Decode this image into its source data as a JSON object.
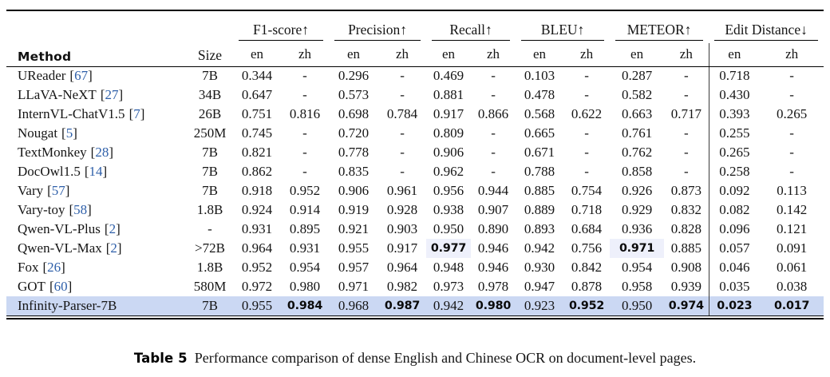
{
  "table": {
    "cite_open": "[",
    "cite_close": "]",
    "header": {
      "method": "Method",
      "size": "Size",
      "sub": [
        "en",
        "zh"
      ],
      "groups": [
        {
          "id": "f1-score",
          "label": "F1-score",
          "arrow": "↑"
        },
        {
          "id": "precision",
          "label": "Precision",
          "arrow": "↑"
        },
        {
          "id": "recall",
          "label": "Recall",
          "arrow": "↑"
        },
        {
          "id": "bleu",
          "label": "BLEU",
          "arrow": "↑"
        },
        {
          "id": "meteor",
          "label": "METEOR",
          "arrow": "↑"
        },
        {
          "id": "edit-distance",
          "label": "Edit Distance",
          "arrow": "↓"
        }
      ]
    },
    "rows": [
      {
        "method": "UReader",
        "cite": "67",
        "size": "7B",
        "values": [
          "0.344",
          "-",
          "0.296",
          "-",
          "0.469",
          "-",
          "0.103",
          "-",
          "0.287",
          "-",
          "0.718",
          "-"
        ],
        "bold": [],
        "hl_cells": [],
        "highlight_row": false
      },
      {
        "method": "LLaVA-NeXT",
        "cite": "27",
        "size": "34B",
        "values": [
          "0.647",
          "-",
          "0.573",
          "-",
          "0.881",
          "-",
          "0.478",
          "-",
          "0.582",
          "-",
          "0.430",
          "-"
        ],
        "bold": [],
        "hl_cells": [],
        "highlight_row": false
      },
      {
        "method": "InternVL-ChatV1.5",
        "cite": "7",
        "size": "26B",
        "values": [
          "0.751",
          "0.816",
          "0.698",
          "0.784",
          "0.917",
          "0.866",
          "0.568",
          "0.622",
          "0.663",
          "0.717",
          "0.393",
          "0.265"
        ],
        "bold": [],
        "hl_cells": [],
        "highlight_row": false
      },
      {
        "method": "Nougat",
        "cite": "5",
        "size": "250M",
        "values": [
          "0.745",
          "-",
          "0.720",
          "-",
          "0.809",
          "-",
          "0.665",
          "-",
          "0.761",
          "-",
          "0.255",
          "-"
        ],
        "bold": [],
        "hl_cells": [],
        "highlight_row": false
      },
      {
        "method": "TextMonkey",
        "cite": "28",
        "size": "7B",
        "values": [
          "0.821",
          "-",
          "0.778",
          "-",
          "0.906",
          "-",
          "0.671",
          "-",
          "0.762",
          "-",
          "0.265",
          "-"
        ],
        "bold": [],
        "hl_cells": [],
        "highlight_row": false
      },
      {
        "method": "DocOwl1.5",
        "cite": "14",
        "size": "7B",
        "values": [
          "0.862",
          "-",
          "0.835",
          "-",
          "0.962",
          "-",
          "0.788",
          "-",
          "0.858",
          "-",
          "0.258",
          "-"
        ],
        "bold": [],
        "hl_cells": [],
        "highlight_row": false
      },
      {
        "method": "Vary",
        "cite": "57",
        "size": "7B",
        "values": [
          "0.918",
          "0.952",
          "0.906",
          "0.961",
          "0.956",
          "0.944",
          "0.885",
          "0.754",
          "0.926",
          "0.873",
          "0.092",
          "0.113"
        ],
        "bold": [],
        "hl_cells": [],
        "highlight_row": false
      },
      {
        "method": "Vary-toy",
        "cite": "58",
        "size": "1.8B",
        "values": [
          "0.924",
          "0.914",
          "0.919",
          "0.928",
          "0.938",
          "0.907",
          "0.889",
          "0.718",
          "0.929",
          "0.832",
          "0.082",
          "0.142"
        ],
        "bold": [],
        "hl_cells": [],
        "highlight_row": false
      },
      {
        "method": "Qwen-VL-Plus",
        "cite": "2",
        "size": "-",
        "values": [
          "0.931",
          "0.895",
          "0.921",
          "0.903",
          "0.950",
          "0.890",
          "0.893",
          "0.684",
          "0.936",
          "0.828",
          "0.096",
          "0.121"
        ],
        "bold": [],
        "hl_cells": [],
        "highlight_row": false
      },
      {
        "method": "Qwen-VL-Max",
        "cite": "2",
        "size": ">72B",
        "values": [
          "0.964",
          "0.931",
          "0.955",
          "0.917",
          "0.977",
          "0.946",
          "0.942",
          "0.756",
          "0.971",
          "0.885",
          "0.057",
          "0.091"
        ],
        "bold": [
          4,
          8
        ],
        "hl_cells": [
          4,
          8
        ],
        "highlight_row": false
      },
      {
        "method": "Fox",
        "cite": "26",
        "size": "1.8B",
        "values": [
          "0.952",
          "0.954",
          "0.957",
          "0.964",
          "0.948",
          "0.946",
          "0.930",
          "0.842",
          "0.954",
          "0.908",
          "0.046",
          "0.061"
        ],
        "bold": [],
        "hl_cells": [],
        "highlight_row": false
      },
      {
        "method": "GOT",
        "cite": "60",
        "size": "580M",
        "values": [
          "0.972",
          "0.980",
          "0.971",
          "0.982",
          "0.973",
          "0.978",
          "0.947",
          "0.878",
          "0.958",
          "0.939",
          "0.035",
          "0.038"
        ],
        "bold": [],
        "hl_cells": [],
        "highlight_row": false
      },
      {
        "method": "Infinity-Parser-7B",
        "cite": null,
        "size": "7B",
        "values": [
          "0.955",
          "0.984",
          "0.968",
          "0.987",
          "0.942",
          "0.980",
          "0.923",
          "0.952",
          "0.950",
          "0.974",
          "0.023",
          "0.017"
        ],
        "bold": [
          1,
          3,
          5,
          7,
          9,
          10,
          11
        ],
        "hl_cells": [],
        "highlight_row": true
      }
    ]
  },
  "caption": {
    "label": "Table 5",
    "text": "Performance comparison of dense English and Chinese OCR on document-level pages."
  },
  "colors": {
    "row_highlight": "#cbd8f3",
    "cell_highlight": "#eef0fb",
    "citation_blue": "#2e5fa9",
    "rule_black": "#000000"
  }
}
